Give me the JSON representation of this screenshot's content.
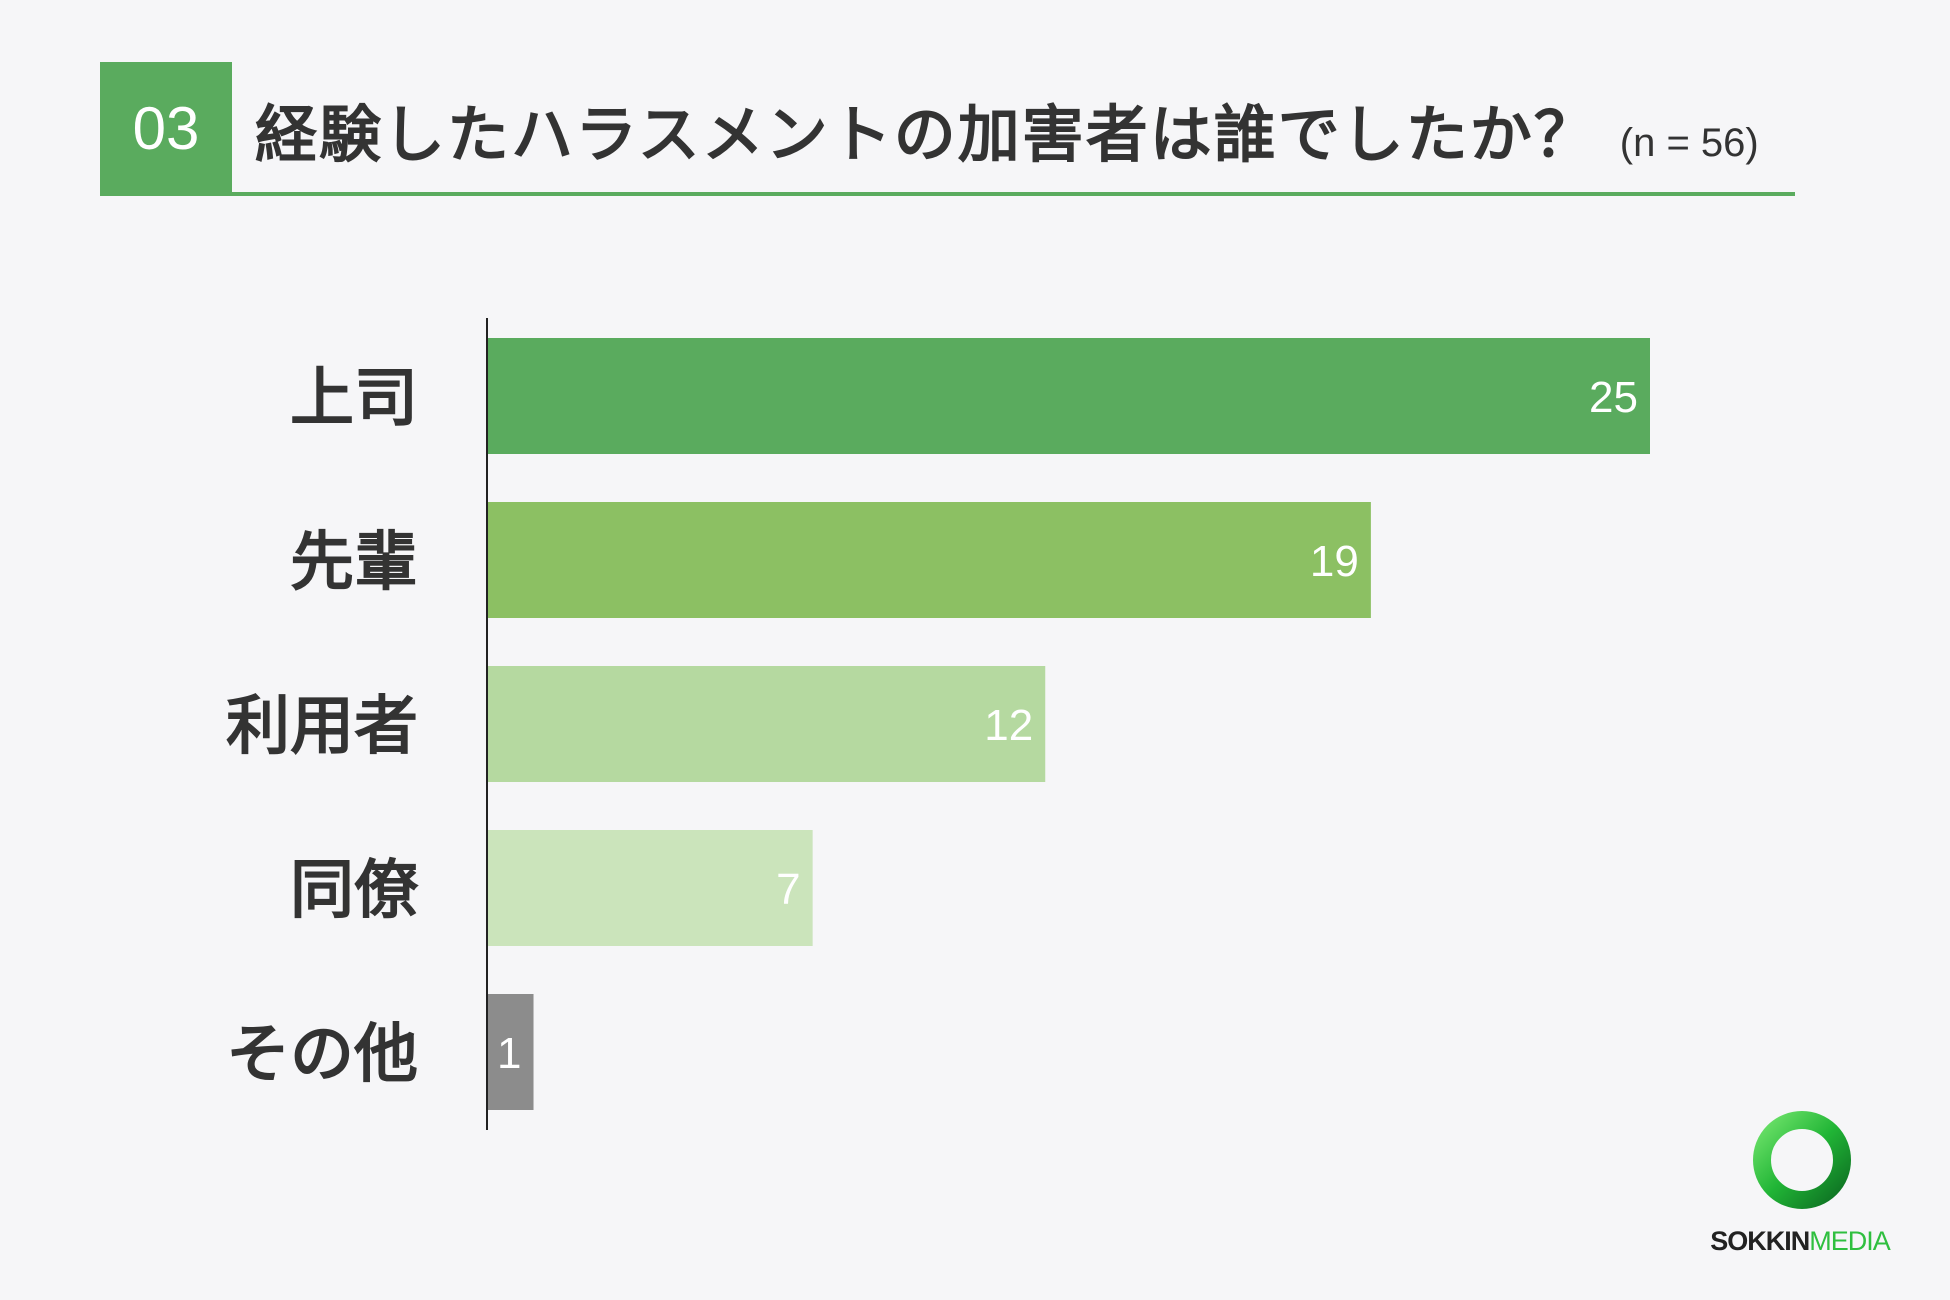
{
  "header": {
    "number": "03",
    "title": "経験したハラスメントの加害者は誰でしたか？",
    "sample": "(n = 56)",
    "accent_color": "#5aab5e"
  },
  "chart_data": {
    "type": "bar",
    "orientation": "horizontal",
    "categories": [
      "上司",
      "先輩",
      "利用者",
      "同僚",
      "その他"
    ],
    "values": [
      25,
      19,
      12,
      7,
      1
    ],
    "colors": [
      "#5aab5e",
      "#8cc063",
      "#b5d9a0",
      "#cbe4bb",
      "#8c8c8c"
    ],
    "xlim": [
      0,
      25
    ],
    "grid": false,
    "data_labels": true
  },
  "logo": {
    "text_a": "SOKKIN",
    "text_b": "MEDIA",
    "icon": "sokkin-ring-logo-icon",
    "color": "#2fbf3f"
  }
}
